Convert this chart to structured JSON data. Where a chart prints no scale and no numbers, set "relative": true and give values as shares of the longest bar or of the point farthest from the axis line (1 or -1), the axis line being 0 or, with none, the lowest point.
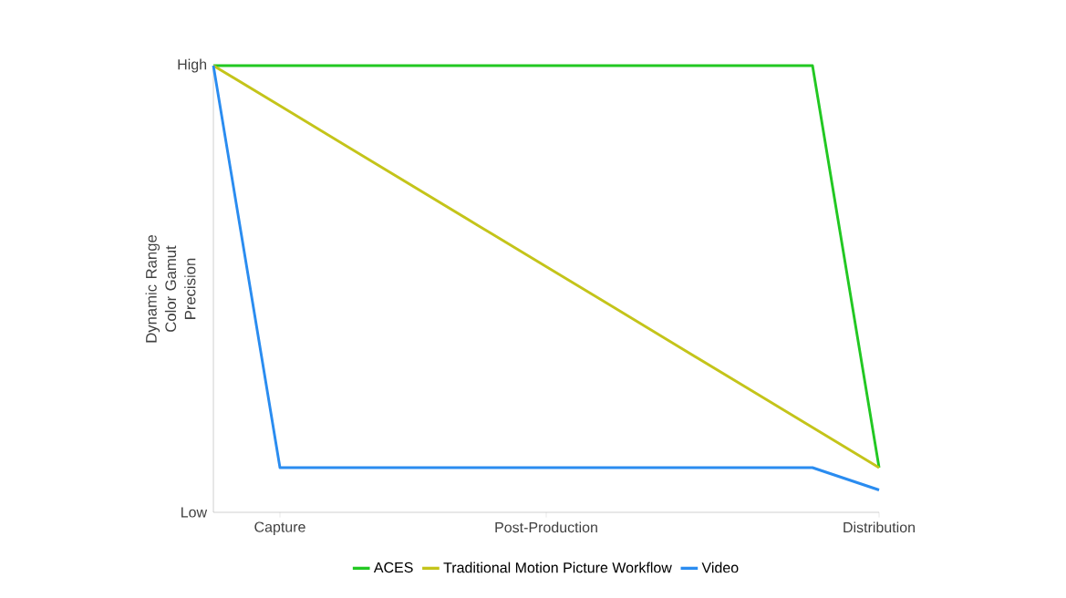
{
  "chart_data": {
    "type": "line",
    "ylabel": "Dynamic Range Color Gamut Precision",
    "relative": true,
    "categories": [
      null,
      "Capture",
      null,
      null,
      null,
      "Post-Production",
      null,
      null,
      null,
      null,
      "Distribution"
    ],
    "annotations": [
      "High",
      "Low"
    ],
    "legend": "bottom",
    "marker": "none",
    "line_style": "solid",
    "series": [
      {
        "name": "ACES",
        "color": "#22c822",
        "values": [
          1,
          1,
          1,
          1,
          1,
          1,
          1,
          1,
          1,
          1,
          0.1
        ]
      },
      {
        "name": "Traditional Motion Picture Workflow",
        "color": "#c4c41a",
        "values": [
          1,
          0.91,
          0.82,
          0.73,
          0.64,
          0.55,
          0.46,
          0.37,
          0.28,
          0.19,
          0.1
        ]
      },
      {
        "name": "Video",
        "color": "#2a8cf0",
        "values": [
          1,
          0.1,
          0.1,
          0.1,
          0.1,
          0.1,
          0.1,
          0.1,
          0.1,
          0.1,
          0.05
        ]
      }
    ]
  }
}
